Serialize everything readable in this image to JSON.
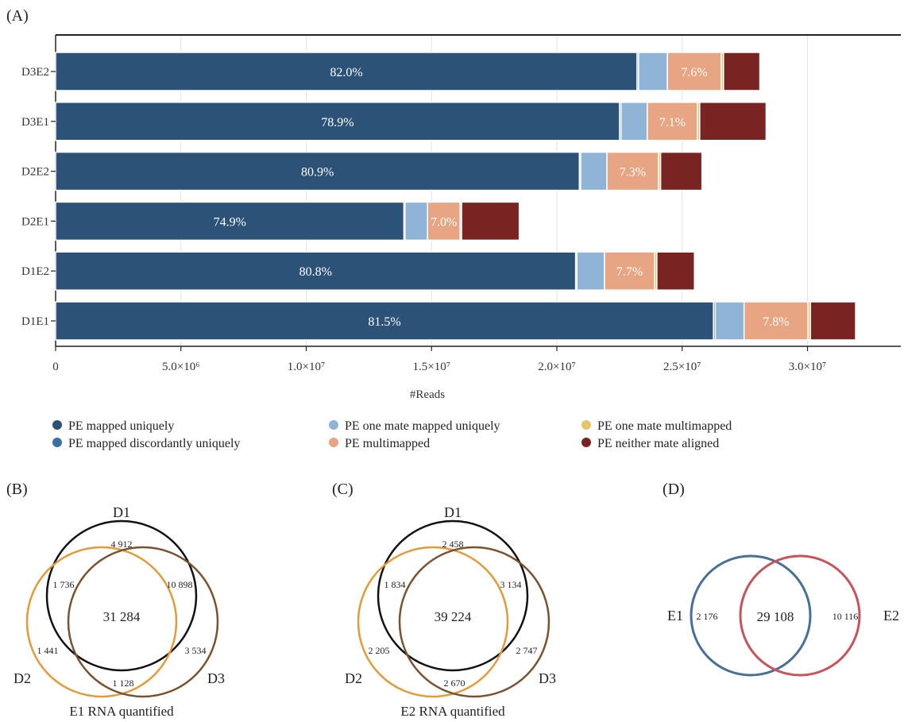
{
  "panel_labels": {
    "a": "(A)",
    "b": "(B)",
    "c": "(C)",
    "d": "(D)"
  },
  "chart_data": [
    {
      "type": "bar",
      "orientation": "horizontal",
      "stacked": true,
      "xlabel": "#Reads",
      "ylabel": "",
      "xlim": [
        0,
        32500000
      ],
      "x_ticks": [
        0,
        5000000,
        10000000,
        15000000,
        20000000,
        25000000,
        30000000
      ],
      "x_tick_labels": [
        "0",
        "5.0×10⁶",
        "1.0×10⁷",
        "1.5×10⁷",
        "2.0×10⁷",
        "2.5×10⁷",
        "3.0×10⁷"
      ],
      "grid": true,
      "legend_position": "bottom",
      "categories": [
        "D3E2",
        "D3E1",
        "D2E2",
        "D2E1",
        "D1E2",
        "D1E1"
      ],
      "series": [
        {
          "name": "PE mapped uniquely",
          "color": "#2c5278",
          "values": [
            23200000,
            22500000,
            20900000,
            13900000,
            20750000,
            26250000
          ],
          "labels": [
            "82.0%",
            "78.9%",
            "80.9%",
            "74.9%",
            "80.8%",
            "81.5%"
          ]
        },
        {
          "name": "PE mapped discordantly uniquely",
          "color": "#3a6ea5",
          "values": [
            60000,
            60000,
            50000,
            40000,
            50000,
            70000
          ],
          "labels": [
            "",
            "",
            "",
            "",
            "",
            ""
          ]
        },
        {
          "name": "PE one mate mapped uniquely",
          "color": "#8fb4d8",
          "values": [
            1150000,
            1050000,
            1050000,
            900000,
            1100000,
            1150000
          ],
          "labels": [
            "",
            "",
            "",
            "",
            "",
            ""
          ]
        },
        {
          "name": "PE multimapped",
          "color": "#e8a583",
          "values": [
            2150000,
            2000000,
            2050000,
            1300000,
            2000000,
            2550000
          ],
          "labels": [
            "7.6%",
            "7.1%",
            "7.3%",
            "7.0%",
            "7.7%",
            "7.8%"
          ]
        },
        {
          "name": "PE one mate multimapped",
          "color": "#e8c36a",
          "values": [
            90000,
            90000,
            90000,
            60000,
            90000,
            100000
          ],
          "labels": [
            "",
            "",
            "",
            "",
            "",
            ""
          ]
        },
        {
          "name": "PE neither mate aligned",
          "color": "#7a2323",
          "values": [
            1450000,
            2650000,
            1650000,
            2300000,
            1500000,
            1800000
          ],
          "labels": [
            "",
            "",
            "",
            "",
            "",
            ""
          ]
        }
      ]
    }
  ],
  "venn_b": {
    "caption": "E1 RNA quantified",
    "sets": [
      {
        "name": "D1",
        "color": "#111111"
      },
      {
        "name": "D2",
        "color": "#e39a38"
      },
      {
        "name": "D3",
        "color": "#7a5230"
      }
    ],
    "regions": {
      "d1_only": "4 912",
      "d1_d2": "1 736",
      "d1_d3": "10 898",
      "all": "31 284",
      "d2_only": "1 441",
      "d3_only": "3 534",
      "d2_d3": "1 128"
    }
  },
  "venn_c": {
    "caption": "E2 RNA quantified",
    "sets": [
      {
        "name": "D1",
        "color": "#111111"
      },
      {
        "name": "D2",
        "color": "#e39a38"
      },
      {
        "name": "D3",
        "color": "#7a5230"
      }
    ],
    "regions": {
      "d1_only": "2 458",
      "d1_d2": "1 834",
      "d1_d3": "3 134",
      "all": "39 224",
      "d2_only": "2 205",
      "d3_only": "2 747",
      "d2_d3": "2 670"
    }
  },
  "venn_d": {
    "sets": [
      {
        "name": "E1",
        "color": "#4a6f96"
      },
      {
        "name": "E2",
        "color": "#c9535b"
      }
    ],
    "regions": {
      "e1_only": "2 176",
      "both": "29 108",
      "e2_only": "10 116"
    }
  }
}
